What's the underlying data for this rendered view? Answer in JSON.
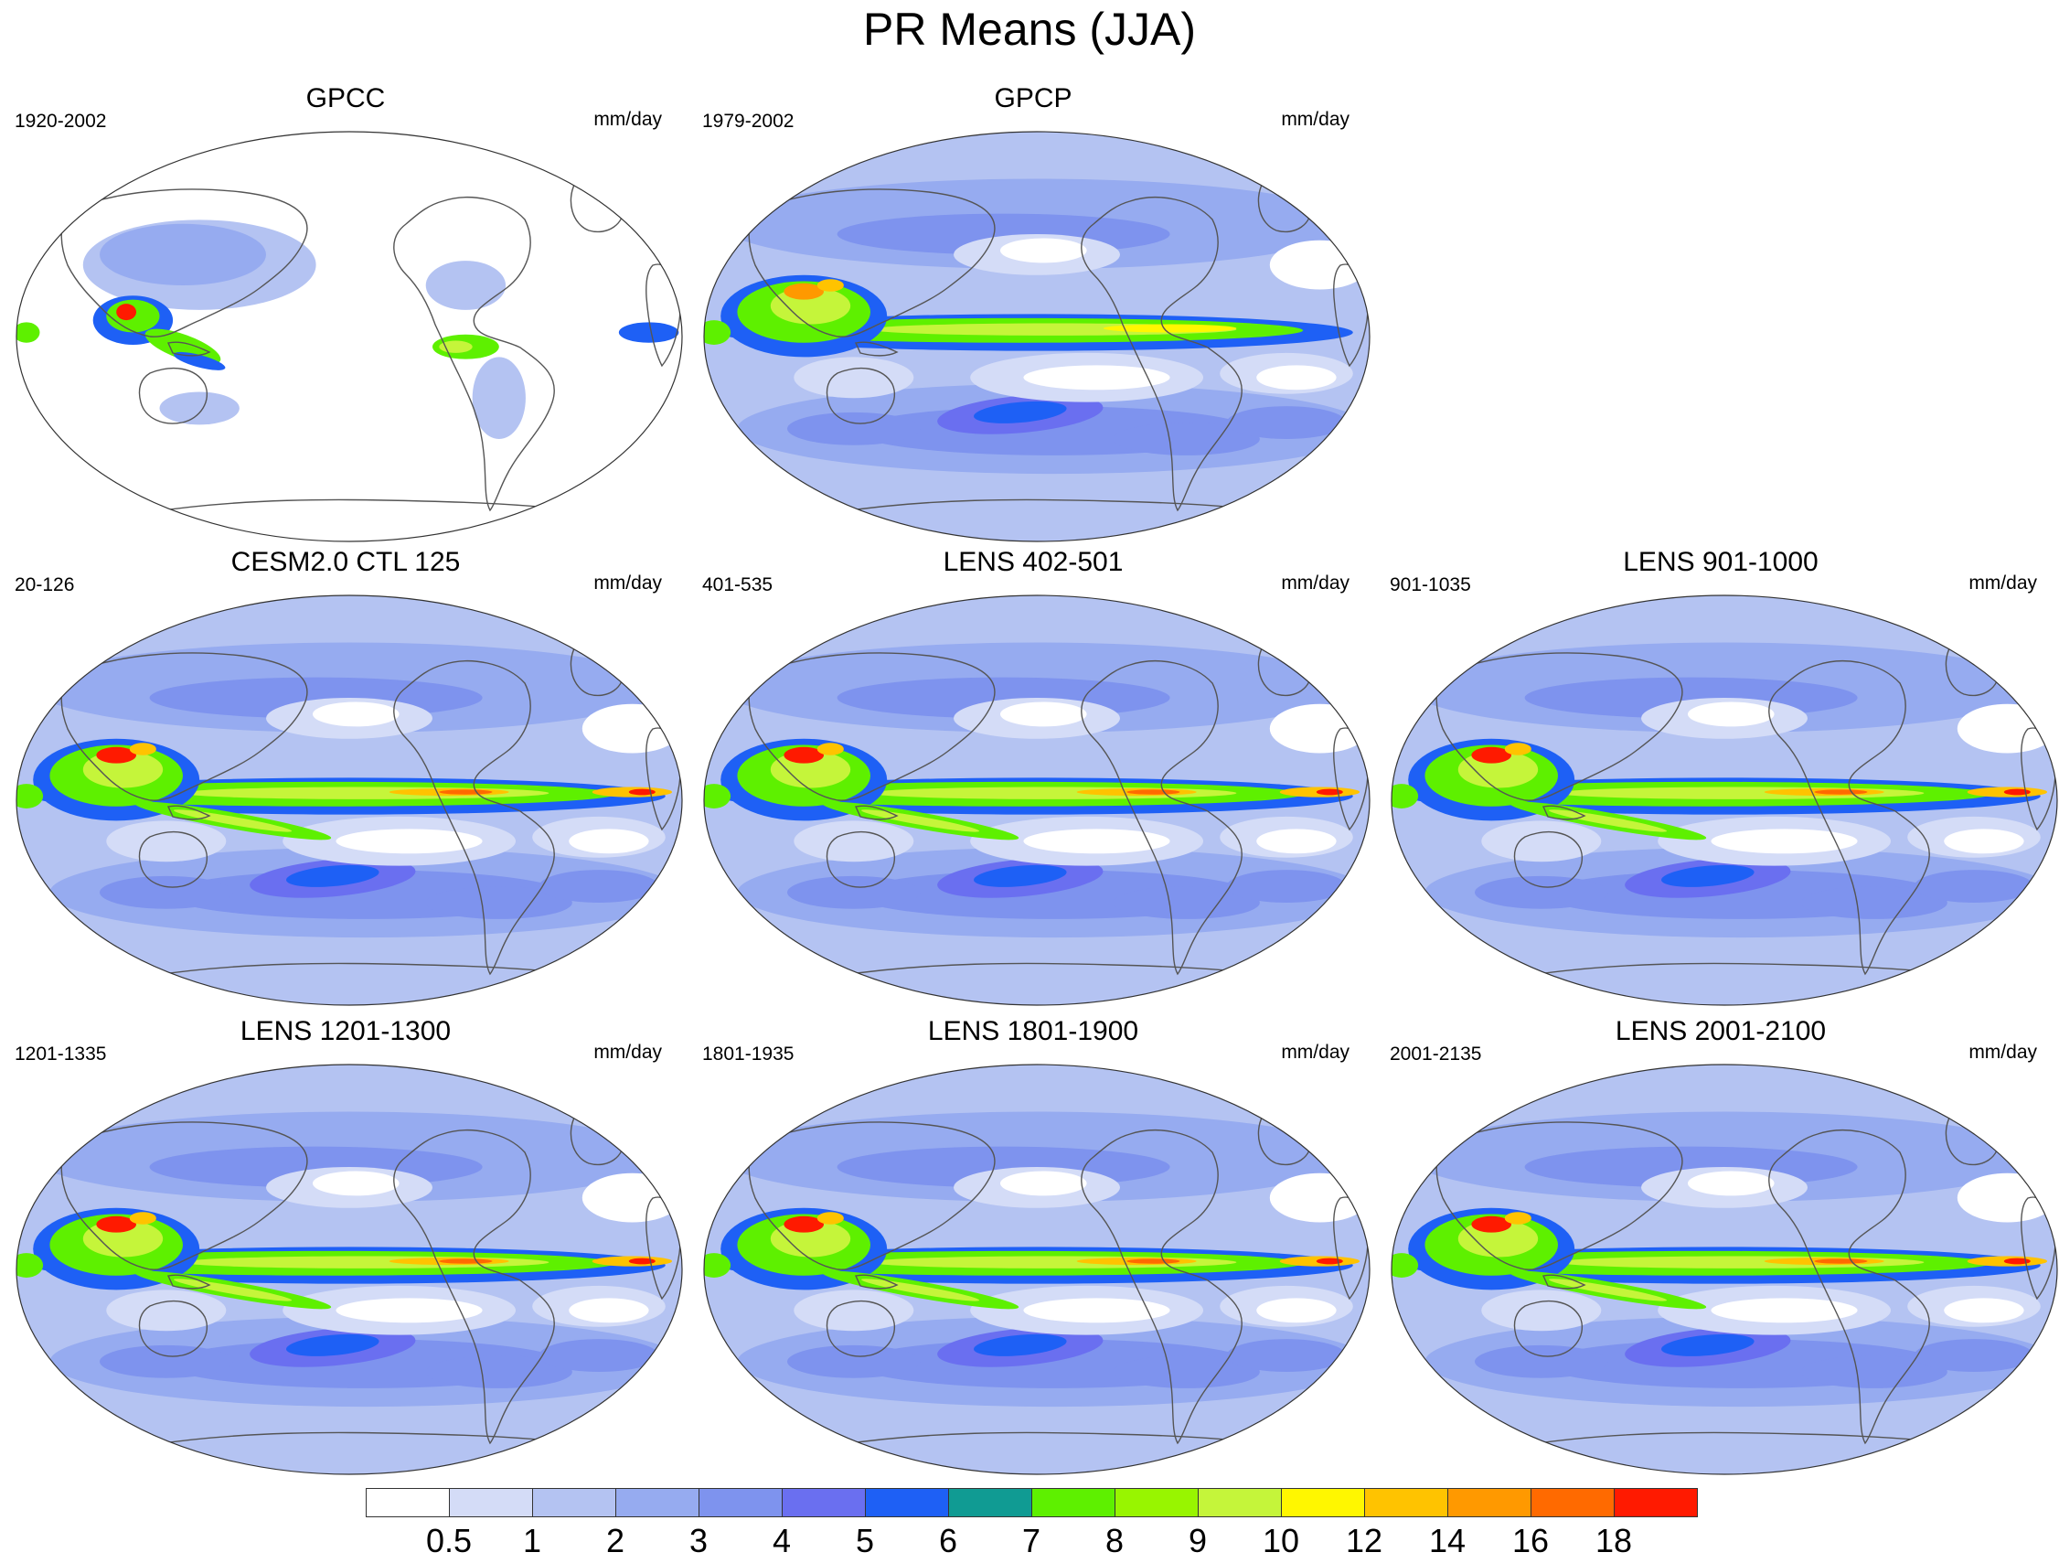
{
  "figure_title": "PR Means (JJA)",
  "units": "mm/day",
  "colorbar": {
    "levels": [
      "0.5",
      "1",
      "2",
      "3",
      "4",
      "5",
      "6",
      "7",
      "8",
      "9",
      "10",
      "12",
      "14",
      "16",
      "18"
    ],
    "colors": [
      "#ffffff",
      "#d4dcf7",
      "#b4c3f2",
      "#96abf0",
      "#7e93ee",
      "#6a6ff0",
      "#1e60f5",
      "#109b93",
      "#5ef000",
      "#98f500",
      "#c5f53a",
      "#fff700",
      "#ffc300",
      "#ff9900",
      "#ff6a00",
      "#ff1a00"
    ]
  },
  "panels": [
    {
      "title": "GPCC",
      "years": "1920-2002",
      "units": "mm/day",
      "coverage": "land-only"
    },
    {
      "title": "GPCP",
      "years": "1979-2002",
      "units": "mm/day",
      "coverage": "global"
    },
    {
      "title": "CESM2.0 CTL 125",
      "years": "20-126",
      "units": "mm/day",
      "coverage": "global"
    },
    {
      "title": "LENS 402-501",
      "years": "401-535",
      "units": "mm/day",
      "coverage": "global"
    },
    {
      "title": "LENS 901-1000",
      "years": "901-1035",
      "units": "mm/day",
      "coverage": "global"
    },
    {
      "title": "LENS 1201-1300",
      "years": "1201-1335",
      "units": "mm/day",
      "coverage": "global"
    },
    {
      "title": "LENS 1801-1900",
      "years": "1801-1935",
      "units": "mm/day",
      "coverage": "global"
    },
    {
      "title": "LENS 2001-2100",
      "years": "2001-2135",
      "units": "mm/day",
      "coverage": "global"
    }
  ]
}
